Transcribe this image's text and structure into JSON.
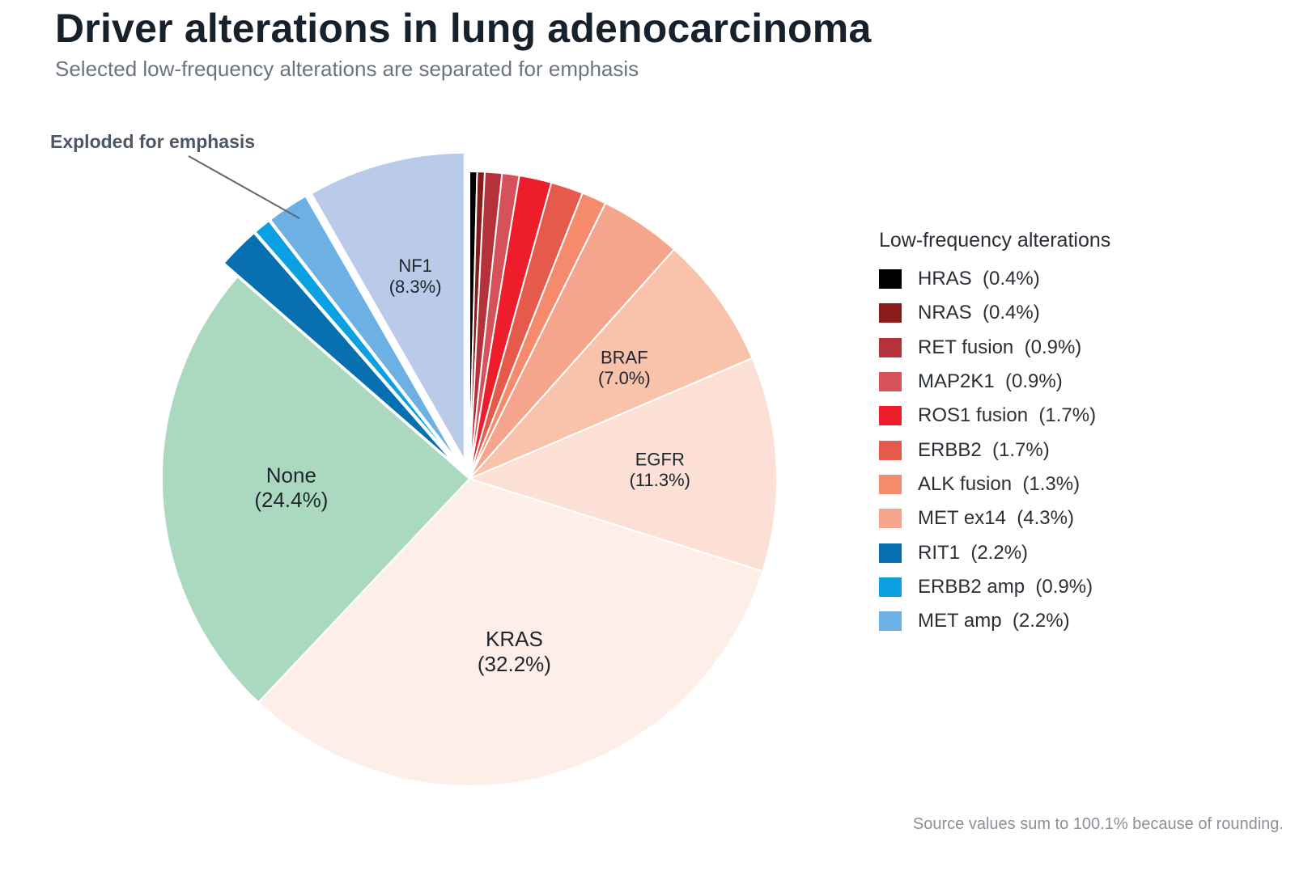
{
  "title": "Driver alterations in lung adenocarcinoma",
  "subtitle": "Selected low-frequency alterations are separated for emphasis",
  "annotation": "Exploded for emphasis",
  "source_note": "Source values sum to 100.1% because of rounding.",
  "legend": {
    "title": "Low-frequency alterations",
    "items": [
      {
        "label": "HRAS  (0.4%)",
        "color": "#000000"
      },
      {
        "label": "NRAS  (0.4%)",
        "color": "#8b1a1a"
      },
      {
        "label": "RET fusion  (0.9%)",
        "color": "#b5323c"
      },
      {
        "label": "MAP2K1  (0.9%)",
        "color": "#d6525a"
      },
      {
        "label": "ROS1 fusion  (1.7%)",
        "color": "#ee1d2b"
      },
      {
        "label": "ERBB2  (1.7%)",
        "color": "#e65a4b"
      },
      {
        "label": "ALK fusion  (1.3%)",
        "color": "#f58a6c"
      },
      {
        "label": "MET ex14  (4.3%)",
        "color": "#f5a58b"
      },
      {
        "label": "RIT1  (2.2%)",
        "color": "#0870b0"
      },
      {
        "label": "ERBB2 amp  (0.9%)",
        "color": "#0aa0e2"
      },
      {
        "label": "MET amp  (2.2%)",
        "color": "#6db0e3"
      }
    ]
  },
  "chart_data": {
    "type": "pie",
    "title": "Driver alterations in lung adenocarcinoma",
    "subtitle": "Selected low-frequency alterations are separated for emphasis",
    "start": "12 o'clock",
    "direction": "clockwise",
    "slices": [
      {
        "name": "HRAS",
        "value": 0.4,
        "color": "#000000",
        "exploded": false,
        "label": ""
      },
      {
        "name": "NRAS",
        "value": 0.4,
        "color": "#8b1a1a",
        "exploded": false,
        "label": ""
      },
      {
        "name": "RET fusion",
        "value": 0.9,
        "color": "#b5323c",
        "exploded": false,
        "label": ""
      },
      {
        "name": "MAP2K1",
        "value": 0.9,
        "color": "#d6525a",
        "exploded": false,
        "label": ""
      },
      {
        "name": "ROS1 fusion",
        "value": 1.7,
        "color": "#ee1d2b",
        "exploded": false,
        "label": ""
      },
      {
        "name": "ERBB2",
        "value": 1.7,
        "color": "#e65a4b",
        "exploded": false,
        "label": ""
      },
      {
        "name": "ALK fusion",
        "value": 1.3,
        "color": "#f58a6c",
        "exploded": false,
        "label": ""
      },
      {
        "name": "MET ex14",
        "value": 4.3,
        "color": "#f5a58b",
        "exploded": false,
        "label": ""
      },
      {
        "name": "BRAF",
        "value": 7.0,
        "color": "#f9c2aa",
        "exploded": false,
        "label": "BRAF\n(7.0%)"
      },
      {
        "name": "EGFR",
        "value": 11.3,
        "color": "#fde0d5",
        "exploded": false,
        "label": "EGFR\n(11.3%)"
      },
      {
        "name": "KRAS",
        "value": 32.2,
        "color": "#fdefe7",
        "exploded": false,
        "label": "KRAS\n(32.2%)"
      },
      {
        "name": "None",
        "value": 24.4,
        "color": "#abd9bf",
        "exploded": false,
        "label": "None\n(24.4%)"
      },
      {
        "name": "RIT1",
        "value": 2.2,
        "color": "#0870b0",
        "exploded": true,
        "label": ""
      },
      {
        "name": "ERBB2 amp",
        "value": 0.9,
        "color": "#0aa0e2",
        "exploded": true,
        "label": ""
      },
      {
        "name": "MET amp",
        "value": 2.2,
        "color": "#6db0e3",
        "exploded": true,
        "label": ""
      },
      {
        "name": "NF1",
        "value": 8.3,
        "color": "#b9cbe9",
        "exploded": true,
        "label": "NF1\n(8.3%)"
      }
    ]
  }
}
